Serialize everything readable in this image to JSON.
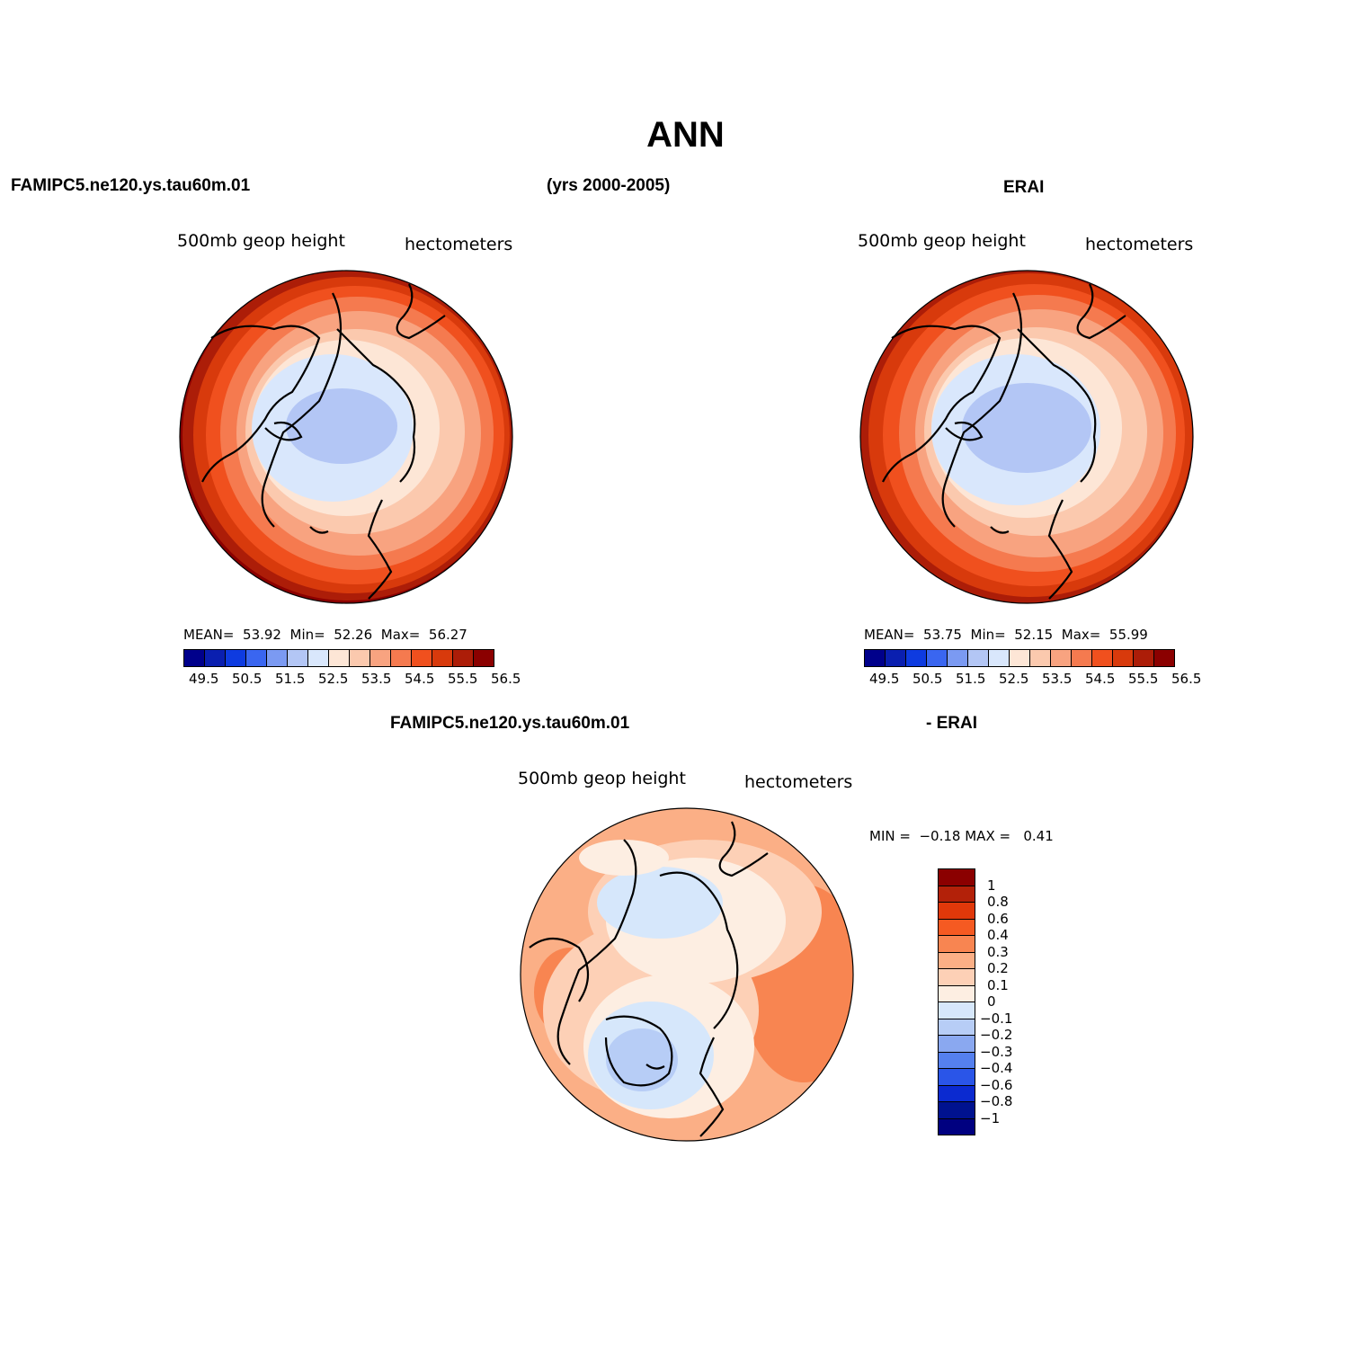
{
  "title": "ANN",
  "top_left_title": "FAMIPC5.ne120.ys.tau60m.01",
  "top_center_title": "(yrs 2000-2005)",
  "top_right_title": "ERAI",
  "diff_title_left": "FAMIPC5.ne120.ys.tau60m.01",
  "diff_title_right": "- ERAI",
  "panels": [
    {
      "variable": "500mb geop height",
      "units": "hectometers",
      "stats": {
        "mean_label": "MEAN=",
        "mean": "53.92",
        "min_label": "Min=",
        "min": "52.26",
        "max_label": "Max=",
        "max": "56.27"
      }
    },
    {
      "variable": "500mb geop height",
      "units": "hectometers",
      "stats": {
        "mean_label": "MEAN=",
        "mean": "53.75",
        "min_label": "Min=",
        "min": "52.15",
        "max_label": "Max=",
        "max": "55.99"
      }
    },
    {
      "variable": "500mb geop height",
      "units": "hectometers",
      "stats": {
        "min_label": "MIN =",
        "min": "−0.18",
        "max_label": "MAX =",
        "max": "0.41"
      }
    }
  ],
  "abs_colorbar": {
    "colors": [
      "#00008b",
      "#0a1fb0",
      "#0e3be0",
      "#3a66f0",
      "#7b9af2",
      "#b3c6f5",
      "#d9e7fc",
      "#fde6d6",
      "#fbc9ae",
      "#f8a380",
      "#f57a4f",
      "#f0501e",
      "#d83a0c",
      "#ac1d08",
      "#8b0000"
    ],
    "tick_labels": [
      "49.5",
      "50.5",
      "51.5",
      "52.5",
      "53.5",
      "54.5",
      "55.5",
      "56.5"
    ]
  },
  "diff_colorbar": {
    "colors_top_to_bottom": [
      "#8b0000",
      "#b32109",
      "#e0380a",
      "#f55a22",
      "#f88551",
      "#fbaf86",
      "#fdd0b6",
      "#fdeee2",
      "#d6e7fb",
      "#b7cdf6",
      "#8aa8f0",
      "#5580ee",
      "#2a55e8",
      "#0b2ad0",
      "#00128f",
      "#000080"
    ],
    "tick_labels": [
      "1",
      "0.8",
      "0.6",
      "0.4",
      "0.3",
      "0.2",
      "0.1",
      "0",
      "−0.1",
      "−0.2",
      "−0.3",
      "−0.4",
      "−0.6",
      "−0.8",
      "−1"
    ]
  }
}
